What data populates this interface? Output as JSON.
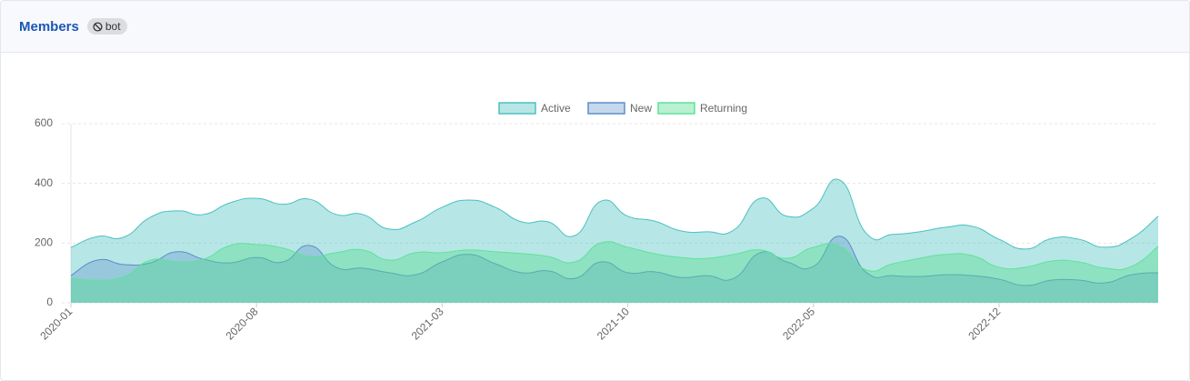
{
  "header": {
    "title": "Members",
    "badge": "bot"
  },
  "chart_data": {
    "type": "area",
    "categories": [
      "2020-01",
      null,
      null,
      null,
      null,
      null,
      null,
      "2020-08",
      null,
      null,
      null,
      null,
      null,
      null,
      "2021-03",
      null,
      null,
      null,
      null,
      null,
      null,
      "2021-10",
      null,
      null,
      null,
      null,
      null,
      null,
      "2022-05",
      null,
      null,
      null,
      null,
      null,
      null,
      "2022-12",
      null,
      null,
      null,
      null,
      null,
      null
    ],
    "series": [
      {
        "name": "Active",
        "color": "#4bc0c0",
        "fill": "rgba(75,192,192,0.4)",
        "values": [
          185,
          222,
          220,
          287,
          308,
          296,
          335,
          350,
          330,
          347,
          296,
          296,
          247,
          271,
          320,
          344,
          320,
          271,
          271,
          225,
          341,
          290,
          274,
          241,
          238,
          244,
          350,
          290,
          317,
          411,
          232,
          229,
          238,
          253,
          256,
          213,
          180,
          216,
          213,
          186,
          216,
          290
        ]
      },
      {
        "name": "New",
        "color": "#5b8ec9",
        "fill": "rgba(91,142,201,0.35)",
        "values": [
          91,
          143,
          128,
          134,
          171,
          146,
          134,
          152,
          137,
          192,
          119,
          116,
          101,
          94,
          137,
          162,
          131,
          101,
          107,
          82,
          137,
          101,
          104,
          85,
          91,
          82,
          168,
          137,
          122,
          223,
          101,
          91,
          88,
          94,
          91,
          79,
          58,
          76,
          76,
          67,
          94,
          101
        ]
      },
      {
        "name": "Returning",
        "color": "#5fe29a",
        "fill": "rgba(80,220,140,0.4)",
        "values": [
          82,
          76,
          88,
          143,
          137,
          146,
          192,
          195,
          183,
          155,
          168,
          177,
          143,
          168,
          168,
          177,
          171,
          165,
          155,
          137,
          201,
          186,
          165,
          152,
          149,
          162,
          177,
          149,
          186,
          189,
          110,
          131,
          149,
          162,
          158,
          119,
          119,
          140,
          137,
          116,
          122,
          189
        ]
      }
    ],
    "ylim": [
      0,
      600
    ],
    "yticks": [
      0,
      200,
      400,
      600
    ],
    "grid": true,
    "legend": "top"
  }
}
